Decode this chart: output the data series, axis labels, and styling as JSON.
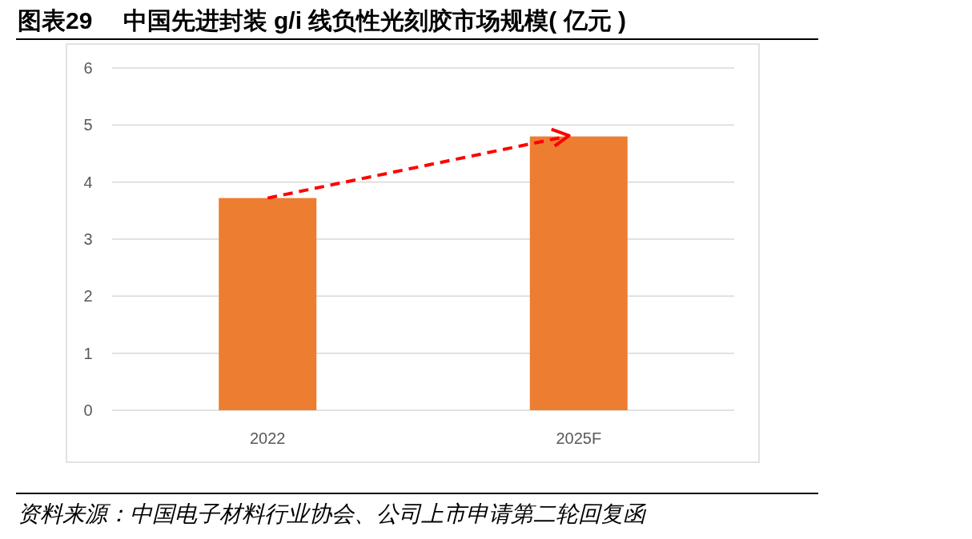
{
  "chart_data": {
    "type": "bar",
    "title": "图表29　 中国先进封装 g/i 线负性光刻胶市场规模( 亿元 )",
    "categories": [
      "2022",
      "2025F"
    ],
    "values": [
      3.72,
      4.8
    ],
    "color": "#ed7d31",
    "ylim": [
      0,
      6
    ],
    "yticks": [
      0,
      1,
      2,
      3,
      4,
      5,
      6
    ],
    "grid": "y",
    "annotations": [
      "资料来源：中国电子材料行业协会、公司上市申请第二轮回复函"
    ]
  }
}
